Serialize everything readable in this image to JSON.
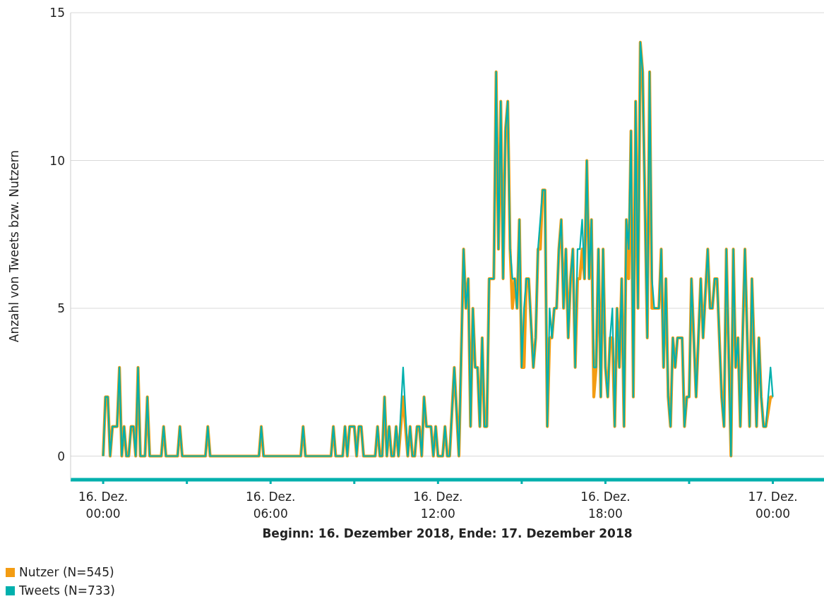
{
  "chart_data": {
    "type": "line",
    "xlabel": "Beginn: 16. Dezember 2018, Ende: 17. Dezember 2018",
    "ylabel": "Anzahl von Tweets bzw. Nutzern",
    "x": [
      "2018-12-16T00:00",
      "2018-12-16T00:05",
      "2018-12-16T00:10",
      "2018-12-16T00:15",
      "2018-12-16T00:20",
      "2018-12-16T00:30",
      "2018-12-16T00:35",
      "2018-12-16T00:40",
      "2018-12-16T00:45",
      "2018-12-16T00:50",
      "2018-12-16T00:55",
      "2018-12-16T01:00",
      "2018-12-16T01:05",
      "2018-12-16T01:10",
      "2018-12-16T01:15",
      "2018-12-16T01:20",
      "2018-12-16T01:30",
      "2018-12-16T01:35",
      "2018-12-16T01:40",
      "2018-12-16T02:05",
      "2018-12-16T02:10",
      "2018-12-16T02:15",
      "2018-12-16T02:40",
      "2018-12-16T02:45",
      "2018-12-16T02:50",
      "2018-12-16T03:40",
      "2018-12-16T03:45",
      "2018-12-16T03:50",
      "2018-12-16T05:35",
      "2018-12-16T05:40",
      "2018-12-16T05:45",
      "2018-12-16T07:05",
      "2018-12-16T07:10",
      "2018-12-16T07:15",
      "2018-12-16T08:10",
      "2018-12-16T08:15",
      "2018-12-16T08:20",
      "2018-12-16T08:35",
      "2018-12-16T08:40",
      "2018-12-16T08:45",
      "2018-12-16T08:50",
      "2018-12-16T09:00",
      "2018-12-16T09:05",
      "2018-12-16T09:10",
      "2018-12-16T09:15",
      "2018-12-16T09:20",
      "2018-12-16T09:45",
      "2018-12-16T09:50",
      "2018-12-16T09:55",
      "2018-12-16T10:00",
      "2018-12-16T10:05",
      "2018-12-16T10:10",
      "2018-12-16T10:15",
      "2018-12-16T10:20",
      "2018-12-16T10:25",
      "2018-12-16T10:30",
      "2018-12-16T10:35",
      "2018-12-16T10:45",
      "2018-12-16T10:55",
      "2018-12-16T11:00",
      "2018-12-16T11:05",
      "2018-12-16T11:10",
      "2018-12-16T11:15",
      "2018-12-16T11:20",
      "2018-12-16T11:25",
      "2018-12-16T11:30",
      "2018-12-16T11:35",
      "2018-12-16T11:45",
      "2018-12-16T11:50",
      "2018-12-16T11:55",
      "2018-12-16T12:00",
      "2018-12-16T12:10",
      "2018-12-16T12:15",
      "2018-12-16T12:20",
      "2018-12-16T12:25",
      "2018-12-16T12:35",
      "2018-12-16T12:45",
      "2018-12-16T12:55",
      "2018-12-16T13:00",
      "2018-12-16T13:05",
      "2018-12-16T13:10",
      "2018-12-16T13:15",
      "2018-12-16T13:20",
      "2018-12-16T13:25",
      "2018-12-16T13:30",
      "2018-12-16T13:35",
      "2018-12-16T13:40",
      "2018-12-16T13:45",
      "2018-12-16T13:50",
      "2018-12-16T14:00",
      "2018-12-16T14:05",
      "2018-12-16T14:10",
      "2018-12-16T14:15",
      "2018-12-16T14:20",
      "2018-12-16T14:25",
      "2018-12-16T14:30",
      "2018-12-16T14:35",
      "2018-12-16T14:40",
      "2018-12-16T14:45",
      "2018-12-16T14:50",
      "2018-12-16T14:55",
      "2018-12-16T15:00",
      "2018-12-16T15:05",
      "2018-12-16T15:10",
      "2018-12-16T15:15",
      "2018-12-16T15:25",
      "2018-12-16T15:30",
      "2018-12-16T15:35",
      "2018-12-16T15:40",
      "2018-12-16T15:45",
      "2018-12-16T15:50",
      "2018-12-16T15:55",
      "2018-12-16T16:00",
      "2018-12-16T16:05",
      "2018-12-16T16:10",
      "2018-12-16T16:15",
      "2018-12-16T16:20",
      "2018-12-16T16:25",
      "2018-12-16T16:30",
      "2018-12-16T16:35",
      "2018-12-16T16:40",
      "2018-12-16T16:45",
      "2018-12-16T16:50",
      "2018-12-16T16:55",
      "2018-12-16T17:00",
      "2018-12-16T17:05",
      "2018-12-16T17:10",
      "2018-12-16T17:15",
      "2018-12-16T17:20",
      "2018-12-16T17:25",
      "2018-12-16T17:30",
      "2018-12-16T17:35",
      "2018-12-16T17:40",
      "2018-12-16T17:45",
      "2018-12-16T17:50",
      "2018-12-16T17:55",
      "2018-12-16T18:00",
      "2018-12-16T18:05",
      "2018-12-16T18:10",
      "2018-12-16T18:15",
      "2018-12-16T18:20",
      "2018-12-16T18:25",
      "2018-12-16T18:30",
      "2018-12-16T18:35",
      "2018-12-16T18:40",
      "2018-12-16T18:45",
      "2018-12-16T18:50",
      "2018-12-16T18:55",
      "2018-12-16T19:00",
      "2018-12-16T19:05",
      "2018-12-16T19:10",
      "2018-12-16T19:15",
      "2018-12-16T19:20",
      "2018-12-16T19:30",
      "2018-12-16T19:35",
      "2018-12-16T19:40",
      "2018-12-16T19:45",
      "2018-12-16T19:50",
      "2018-12-16T19:55",
      "2018-12-16T20:00",
      "2018-12-16T20:05",
      "2018-12-16T20:10",
      "2018-12-16T20:15",
      "2018-12-16T20:20",
      "2018-12-16T20:25",
      "2018-12-16T20:30",
      "2018-12-16T20:35",
      "2018-12-16T20:40",
      "2018-12-16T20:45",
      "2018-12-16T20:50",
      "2018-12-16T20:55",
      "2018-12-16T21:00",
      "2018-12-16T21:05",
      "2018-12-16T21:15",
      "2018-12-16T21:25",
      "2018-12-16T21:30",
      "2018-12-16T21:40",
      "2018-12-16T21:45",
      "2018-12-16T21:50",
      "2018-12-16T21:55",
      "2018-12-16T22:00",
      "2018-12-16T22:10",
      "2018-12-16T22:15",
      "2018-12-16T22:20",
      "2018-12-16T22:30",
      "2018-12-16T22:35",
      "2018-12-16T22:40",
      "2018-12-16T22:45",
      "2018-12-16T22:50",
      "2018-12-16T23:00",
      "2018-12-16T23:10",
      "2018-12-16T23:15",
      "2018-12-16T23:25",
      "2018-12-16T23:30",
      "2018-12-16T23:35",
      "2018-12-16T23:40",
      "2018-12-16T23:45",
      "2018-12-16T23:55",
      "2018-12-17T00:00"
    ],
    "series": [
      {
        "name": "Nutzer (N=545)",
        "color": "#f39c12",
        "values": [
          0,
          2,
          2,
          0,
          1,
          1,
          3,
          0,
          1,
          0,
          0,
          1,
          1,
          0,
          3,
          0,
          0,
          2,
          0,
          0,
          1,
          0,
          0,
          1,
          0,
          0,
          1,
          0,
          0,
          1,
          0,
          0,
          1,
          0,
          0,
          1,
          0,
          0,
          1,
          0,
          1,
          1,
          0,
          1,
          1,
          0,
          0,
          1,
          0,
          0,
          2,
          0,
          1,
          0,
          0,
          1,
          0,
          2,
          0,
          1,
          0,
          0,
          1,
          1,
          0,
          2,
          1,
          1,
          0,
          1,
          0,
          0,
          1,
          0,
          0,
          3,
          0,
          7,
          5,
          6,
          1,
          5,
          3,
          3,
          1,
          4,
          1,
          1,
          6,
          6,
          13,
          7,
          12,
          6,
          11,
          12,
          7,
          5,
          6,
          5,
          8,
          3,
          3,
          6,
          6,
          3,
          4,
          7,
          7,
          9,
          9,
          1,
          4,
          4,
          5,
          5,
          7,
          8,
          5,
          7,
          4,
          6,
          7,
          3,
          6,
          6,
          7,
          6,
          10,
          6,
          8,
          2,
          3,
          7,
          2,
          7,
          3,
          2,
          4,
          4,
          1,
          5,
          3,
          6,
          1,
          8,
          6,
          11,
          2,
          12,
          5,
          14,
          13,
          4,
          13,
          5,
          5,
          5,
          5,
          7,
          3,
          6,
          2,
          1,
          4,
          3,
          4,
          4,
          4,
          1,
          2,
          2,
          6,
          2,
          6,
          4,
          7,
          5,
          5,
          6,
          6,
          2,
          1,
          7,
          0,
          7,
          3,
          4,
          1,
          7,
          1,
          6,
          1,
          4,
          2,
          1,
          1,
          2,
          2
        ]
      },
      {
        "name": "Tweets (N=733)",
        "color": "#00b0ad",
        "values": [
          0,
          2,
          2,
          0,
          1,
          1,
          3,
          0,
          1,
          0,
          0,
          1,
          1,
          0,
          3,
          0,
          0,
          2,
          0,
          0,
          1,
          0,
          0,
          1,
          0,
          0,
          1,
          0,
          0,
          1,
          0,
          0,
          1,
          0,
          0,
          1,
          0,
          0,
          1,
          0,
          1,
          1,
          0,
          1,
          1,
          0,
          0,
          1,
          0,
          0,
          2,
          0,
          1,
          0,
          0,
          1,
          0,
          3,
          0,
          1,
          0,
          0,
          1,
          1,
          0,
          2,
          1,
          1,
          0,
          1,
          0,
          0,
          1,
          0,
          0,
          3,
          0,
          7,
          5,
          6,
          1,
          5,
          3,
          3,
          1,
          4,
          1,
          1,
          6,
          6,
          13,
          7,
          12,
          6,
          11,
          12,
          7,
          6,
          6,
          5,
          8,
          3,
          5,
          6,
          6,
          3,
          4,
          7,
          8,
          9,
          9,
          1,
          5,
          4,
          5,
          5,
          7,
          8,
          5,
          7,
          4,
          6,
          7,
          3,
          7,
          7,
          8,
          6,
          10,
          6,
          8,
          3,
          3,
          7,
          2,
          7,
          3,
          2,
          4,
          5,
          1,
          5,
          3,
          6,
          1,
          8,
          7,
          11,
          2,
          12,
          5,
          14,
          13,
          4,
          13,
          6,
          5,
          5,
          5,
          7,
          3,
          6,
          2,
          1,
          4,
          3,
          4,
          4,
          4,
          1,
          2,
          2,
          6,
          2,
          6,
          4,
          7,
          5,
          5,
          6,
          6,
          2,
          1,
          7,
          0,
          7,
          3,
          4,
          1,
          7,
          1,
          6,
          1,
          4,
          2,
          1,
          1,
          3,
          2
        ]
      }
    ],
    "xlim": [
      "2018-12-15T22:50",
      "2018-12-17T01:50"
    ],
    "xticks": [
      {
        "value": "2018-12-16T00:00",
        "label": "16. Dez.\n00:00"
      },
      {
        "value": "2018-12-16T03:00",
        "label": null
      },
      {
        "value": "2018-12-16T06:00",
        "label": "16. Dez.\n06:00"
      },
      {
        "value": "2018-12-16T09:00",
        "label": null
      },
      {
        "value": "2018-12-16T12:00",
        "label": "16. Dez.\n12:00"
      },
      {
        "value": "2018-12-16T15:00",
        "label": null
      },
      {
        "value": "2018-12-16T18:00",
        "label": "16. Dez.\n18:00"
      },
      {
        "value": "2018-12-16T21:00",
        "label": null
      },
      {
        "value": "2018-12-17T00:00",
        "label": "17. Dez.\n00:00"
      }
    ],
    "ylim": [
      -0.8,
      15
    ],
    "yticks": [
      0,
      5,
      10,
      15
    ],
    "grid": "y",
    "legend": "bottom left"
  }
}
